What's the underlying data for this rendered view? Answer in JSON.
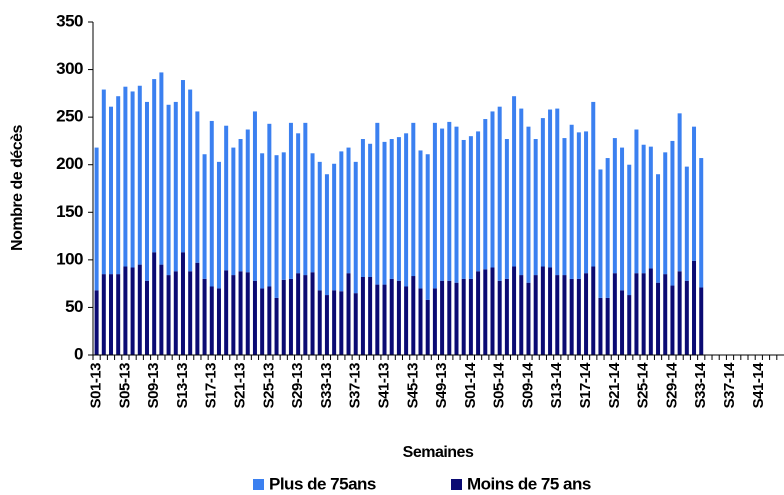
{
  "chart_data": {
    "type": "stacked-bar",
    "y_label": "Nombre de décès",
    "x_label": "Semaines",
    "categories": [
      "S01-13",
      null,
      null,
      null,
      "S05-13",
      null,
      null,
      null,
      "S09-13",
      null,
      null,
      null,
      "S13-13",
      null,
      null,
      null,
      "S17-13",
      null,
      null,
      null,
      "S21-13",
      null,
      null,
      null,
      "S25-13",
      null,
      null,
      null,
      "S29-13",
      null,
      null,
      null,
      "S33-13",
      null,
      null,
      null,
      "S37-13",
      null,
      null,
      null,
      "S41-13",
      null,
      null,
      null,
      "S45-13",
      null,
      null,
      null,
      "S49-13",
      null,
      null,
      null,
      "S01-14",
      null,
      null,
      null,
      "S05-14",
      null,
      null,
      null,
      "S09-14",
      null,
      null,
      null,
      "S13-14",
      null,
      null,
      null,
      "S17-14",
      null,
      null,
      null,
      "S21-14",
      null,
      null,
      null,
      "S25-14",
      null,
      null,
      null,
      "S29-14",
      null,
      null,
      null,
      "S33-14",
      null,
      null,
      null,
      "S37-14",
      null,
      null,
      null,
      "S41-14",
      null,
      null,
      null
    ],
    "series": [
      {
        "name": "Moins de 75 ans",
        "color": "#0b0b73",
        "values": [
          68,
          85,
          85,
          85,
          93,
          92,
          95,
          78,
          108,
          95,
          84,
          88,
          108,
          88,
          97,
          80,
          72,
          70,
          89,
          84,
          88,
          87,
          78,
          70,
          72,
          60,
          79,
          80,
          86,
          84,
          87,
          68,
          63,
          68,
          67,
          86,
          65,
          82,
          82,
          74,
          74,
          80,
          78,
          72,
          83,
          70,
          58,
          70,
          78,
          78,
          76,
          80,
          80,
          88,
          90,
          92,
          78,
          80,
          93,
          84,
          76,
          84,
          93,
          92,
          84,
          84,
          80,
          80,
          86,
          93,
          60,
          60,
          86,
          68,
          63,
          86,
          86,
          91,
          76,
          85,
          73,
          88,
          78,
          99,
          71,
          null,
          null,
          null,
          null,
          null,
          null,
          null,
          null,
          null,
          null,
          null
        ]
      },
      {
        "name": "Plus de 75ans",
        "color": "#3b80f0",
        "values": [
          150,
          194,
          176,
          187,
          189,
          185,
          188,
          188,
          182,
          202,
          179,
          178,
          181,
          191,
          159,
          131,
          174,
          133,
          152,
          134,
          139,
          150,
          178,
          142,
          171,
          150,
          134,
          164,
          147,
          160,
          125,
          135,
          127,
          133,
          147,
          132,
          138,
          145,
          140,
          170,
          150,
          147,
          151,
          161,
          161,
          145,
          153,
          174,
          160,
          167,
          164,
          146,
          150,
          147,
          158,
          164,
          183,
          147,
          179,
          175,
          164,
          143,
          156,
          166,
          175,
          144,
          162,
          154,
          149,
          173,
          135,
          147,
          142,
          150,
          137,
          151,
          135,
          128,
          114,
          128,
          152,
          166,
          120,
          141,
          136,
          null,
          null,
          null,
          null,
          null,
          null,
          null,
          null,
          null,
          null,
          null
        ]
      }
    ],
    "ylim": [
      0,
      350
    ],
    "yticks": [
      0,
      50,
      100,
      150,
      200,
      250,
      300,
      350
    ]
  }
}
